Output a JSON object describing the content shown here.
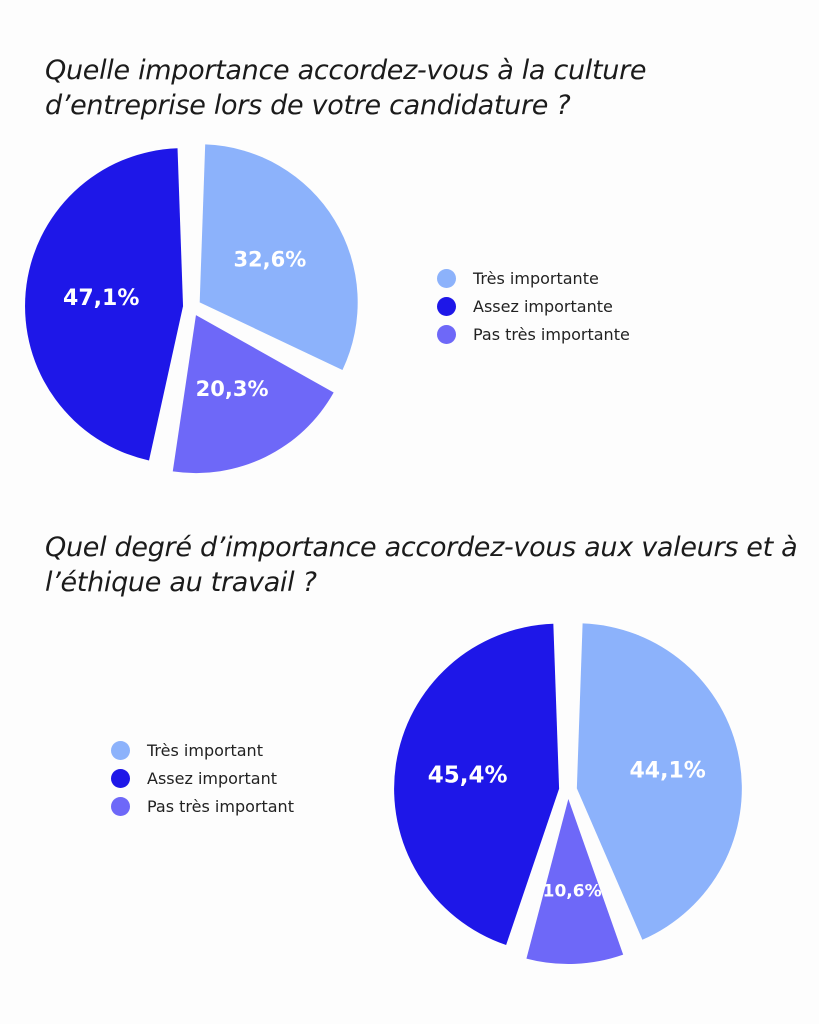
{
  "colors": {
    "light": "#8cb2fb",
    "dark": "#1e17e8",
    "medium": "#6e68f8",
    "background": "#fdfdfd"
  },
  "chart_data": [
    {
      "type": "pie",
      "title": "Quelle importance accordez-vous à la culture d’entreprise lors de votre candidature ?",
      "legend_position": "right",
      "slices": [
        {
          "label": "Très importante",
          "value": 32.6,
          "value_label": "32,6%",
          "color": "#8cb2fb"
        },
        {
          "label": "Pas très importante",
          "value": 20.3,
          "value_label": "20,3%",
          "color": "#6e68f8"
        },
        {
          "label": "Assez importante",
          "value": 47.1,
          "value_label": "47,1%",
          "color": "#1e17e8"
        }
      ],
      "legend": [
        {
          "label": "Très importante",
          "color": "#8cb2fb"
        },
        {
          "label": "Assez importante",
          "color": "#1e17e8"
        },
        {
          "label": "Pas très importante",
          "color": "#6e68f8"
        }
      ]
    },
    {
      "type": "pie",
      "title": "Quel degré d’importance accordez-vous aux valeurs et à l’éthique au travail ?",
      "legend_position": "left",
      "slices": [
        {
          "label": "Très important",
          "value": 44.1,
          "value_label": "44,1%",
          "color": "#8cb2fb"
        },
        {
          "label": "Pas très important",
          "value": 10.6,
          "value_label": "10,6%",
          "color": "#6e68f8"
        },
        {
          "label": "Assez important",
          "value": 45.4,
          "value_label": "45,4%",
          "color": "#1e17e8"
        }
      ],
      "legend": [
        {
          "label": "Très important",
          "color": "#8cb2fb"
        },
        {
          "label": "Assez important",
          "color": "#1e17e8"
        },
        {
          "label": "Pas très important",
          "color": "#6e68f8"
        }
      ]
    }
  ]
}
